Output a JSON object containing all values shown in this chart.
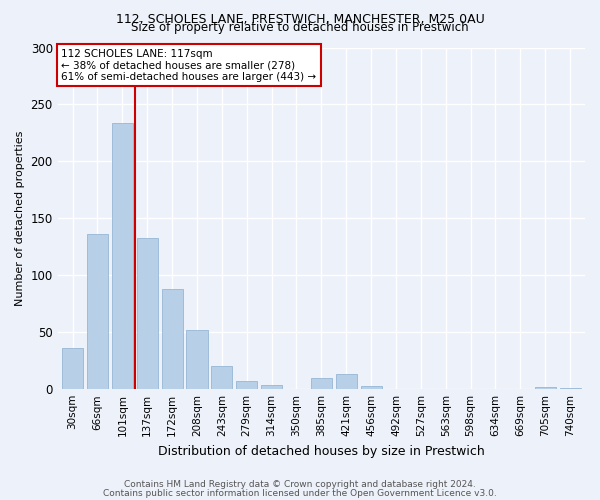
{
  "title1": "112, SCHOLES LANE, PRESTWICH, MANCHESTER, M25 0AU",
  "title2": "Size of property relative to detached houses in Prestwich",
  "xlabel": "Distribution of detached houses by size in Prestwich",
  "ylabel": "Number of detached properties",
  "categories": [
    "30sqm",
    "66sqm",
    "101sqm",
    "137sqm",
    "172sqm",
    "208sqm",
    "243sqm",
    "279sqm",
    "314sqm",
    "350sqm",
    "385sqm",
    "421sqm",
    "456sqm",
    "492sqm",
    "527sqm",
    "563sqm",
    "598sqm",
    "634sqm",
    "669sqm",
    "705sqm",
    "740sqm"
  ],
  "values": [
    36,
    136,
    234,
    133,
    88,
    52,
    20,
    7,
    4,
    0,
    10,
    13,
    3,
    0,
    0,
    0,
    0,
    0,
    0,
    2,
    1
  ],
  "bar_color": "#b8cfe8",
  "bar_edge_color": "#8aaed0",
  "vline_x": 2.5,
  "vline_color": "#cc0000",
  "annotation_text": "112 SCHOLES LANE: 117sqm\n← 38% of detached houses are smaller (278)\n61% of semi-detached houses are larger (443) →",
  "annotation_box_color": "#ffffff",
  "annotation_box_edge": "#cc0000",
  "footnote1": "Contains HM Land Registry data © Crown copyright and database right 2024.",
  "footnote2": "Contains public sector information licensed under the Open Government Licence v3.0.",
  "bg_color": "#edf1f9",
  "grid_color": "#ffffff",
  "ylim": [
    0,
    300
  ],
  "yticks": [
    0,
    50,
    100,
    150,
    200,
    250,
    300
  ]
}
